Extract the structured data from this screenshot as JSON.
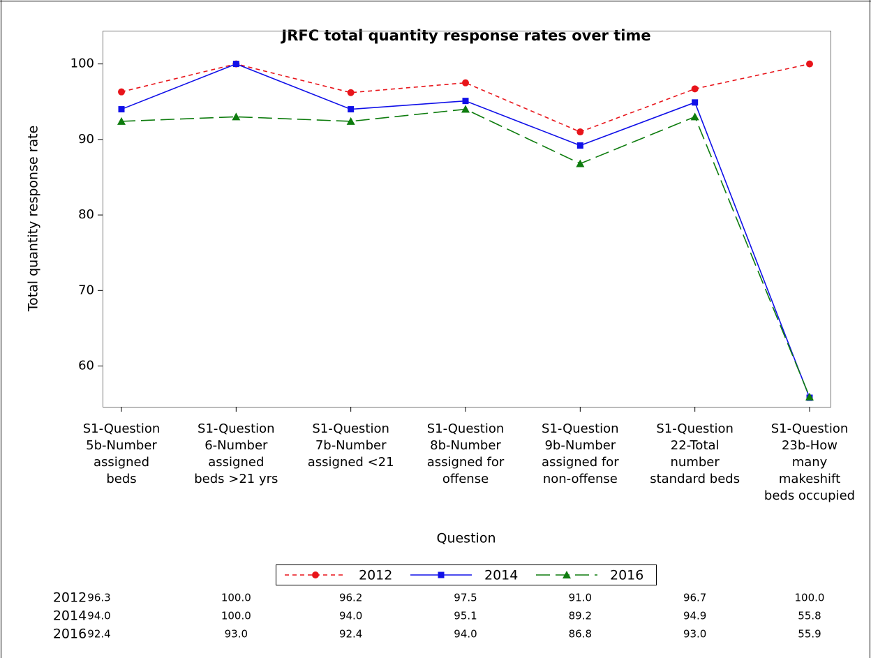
{
  "chart_data": {
    "type": "line",
    "title": "JRFC total quantity response rates over time",
    "x_label": "Question",
    "y_label": "Total quantity response rate",
    "categories": [
      "S1-Question\n5b-Number\nassigned\nbeds",
      "S1-Question\n6-Number\nassigned\nbeds >21 yrs",
      "S1-Question\n7b-Number\nassigned <21",
      "S1-Question\n8b-Number\nassigned for\noffense",
      "S1-Question\n9b-Number\nassigned for\nnon-offense",
      "S1-Question\n22-Total\nnumber\nstandard beds",
      "S1-Question\n23b-How\nmany\nmakeshift\nbeds occupied"
    ],
    "series": [
      {
        "name": "2012",
        "color": "#e8141a",
        "dash": "6,5",
        "marker": "circle",
        "values": [
          96.3,
          100.0,
          96.2,
          97.5,
          91.0,
          96.7,
          100.0
        ],
        "value_labels": [
          "96.3",
          "100.0",
          "96.2",
          "97.5",
          "91.0",
          "96.7",
          "100.0"
        ]
      },
      {
        "name": "2014",
        "color": "#1010e8",
        "dash": "none",
        "marker": "square",
        "values": [
          94.0,
          100.0,
          94.0,
          95.1,
          89.2,
          94.9,
          55.8
        ],
        "value_labels": [
          "94.0",
          "100.0",
          "94.0",
          "95.1",
          "89.2",
          "94.9",
          "55.8"
        ]
      },
      {
        "name": "2016",
        "color": "#0e7c0e",
        "dash": "20,8",
        "marker": "triangle",
        "values": [
          92.4,
          93.0,
          92.4,
          94.0,
          86.8,
          93.0,
          55.9
        ],
        "value_labels": [
          "92.4",
          "93.0",
          "92.4",
          "94.0",
          "86.8",
          "93.0",
          "55.9"
        ]
      }
    ],
    "ylim": [
      54.6,
      104.4
    ],
    "yticks": [
      60,
      70,
      80,
      90,
      100
    ],
    "grid": false,
    "legend": "bottom"
  }
}
